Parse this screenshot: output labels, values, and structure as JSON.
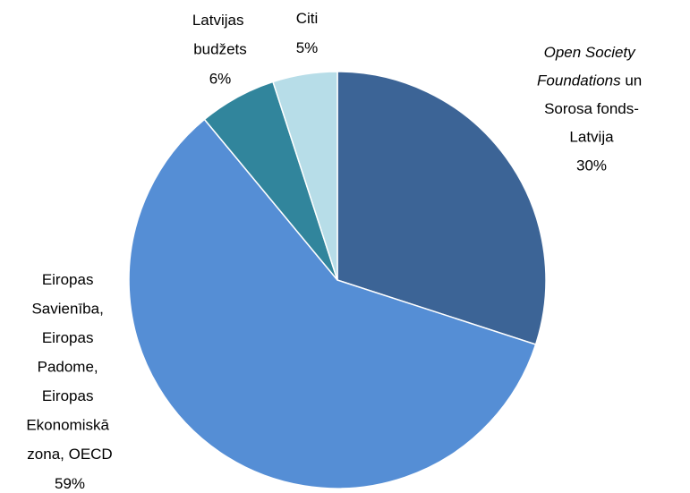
{
  "chart_data": {
    "type": "pie",
    "categories": [
      "Open Society Foundations un Sorosa fonds-Latvija",
      "Eiropas Savienība, Eiropas Padome, Eiropas Ekonomiskā zona, OECD",
      "Latvijas budžets",
      "Citi"
    ],
    "values": [
      30,
      59,
      6,
      5
    ],
    "value_labels": [
      "30%",
      "59%",
      "6%",
      "5%"
    ],
    "colors": [
      "#3c6496",
      "#558ed5",
      "#31859c",
      "#b7dde8"
    ]
  }
}
